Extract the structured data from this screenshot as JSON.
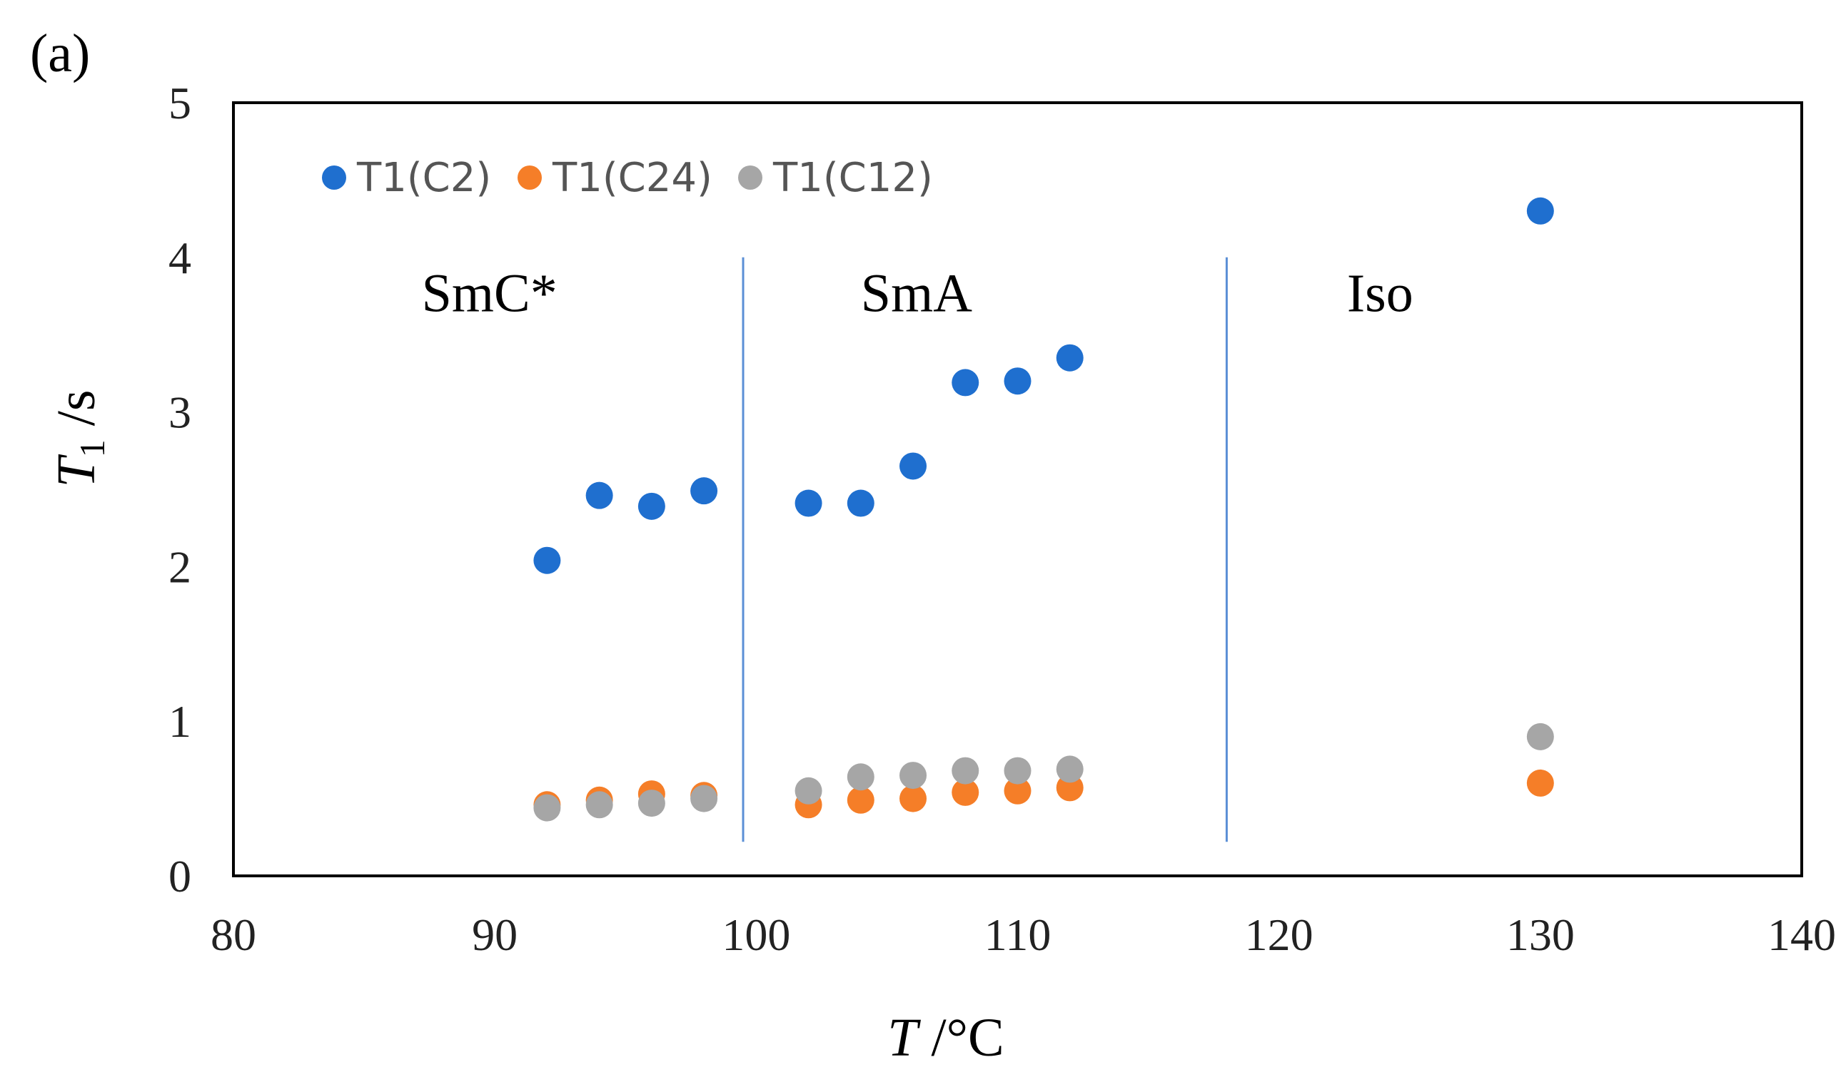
{
  "panel_label": "(a)",
  "chart_data": {
    "type": "scatter",
    "xlabel": {
      "italic": "T",
      "rest": " /°C"
    },
    "ylabel": {
      "italic": "T",
      "sub": "1",
      "rest": " /s"
    },
    "xlim": [
      80,
      140
    ],
    "ylim": [
      0,
      5
    ],
    "xticks": [
      80,
      90,
      100,
      110,
      120,
      130,
      140
    ],
    "yticks": [
      0,
      1,
      2,
      3,
      4,
      5
    ],
    "grid": false,
    "legend_position": "top-left",
    "phase_boundaries": [
      99.5,
      118
    ],
    "regions": [
      {
        "label": "SmC*",
        "x": 87.2,
        "y": 3.65
      },
      {
        "label": "SmA",
        "x": 104,
        "y": 3.65
      },
      {
        "label": "Iso",
        "x": 122.6,
        "y": 3.65
      }
    ],
    "series": [
      {
        "name": "T1(C2)",
        "color": "#1f6fcf",
        "points": [
          [
            92,
            2.04
          ],
          [
            94,
            2.46
          ],
          [
            96,
            2.39
          ],
          [
            98,
            2.49
          ],
          [
            102,
            2.41
          ],
          [
            104,
            2.41
          ],
          [
            106,
            2.65
          ],
          [
            108,
            3.19
          ],
          [
            110,
            3.2
          ],
          [
            112,
            3.35
          ],
          [
            130,
            4.3
          ]
        ]
      },
      {
        "name": "T1(C24)",
        "color": "#f57e28",
        "points": [
          [
            92,
            0.46
          ],
          [
            94,
            0.49
          ],
          [
            96,
            0.53
          ],
          [
            98,
            0.52
          ],
          [
            102,
            0.46
          ],
          [
            104,
            0.49
          ],
          [
            106,
            0.5
          ],
          [
            108,
            0.54
          ],
          [
            110,
            0.55
          ],
          [
            112,
            0.57
          ],
          [
            130,
            0.6
          ]
        ]
      },
      {
        "name": "T1(C12)",
        "color": "#a6a6a6",
        "points": [
          [
            92,
            0.44
          ],
          [
            94,
            0.46
          ],
          [
            96,
            0.47
          ],
          [
            98,
            0.5
          ],
          [
            102,
            0.55
          ],
          [
            104,
            0.64
          ],
          [
            106,
            0.65
          ],
          [
            108,
            0.68
          ],
          [
            110,
            0.68
          ],
          [
            112,
            0.69
          ],
          [
            130,
            0.9
          ]
        ]
      }
    ]
  }
}
